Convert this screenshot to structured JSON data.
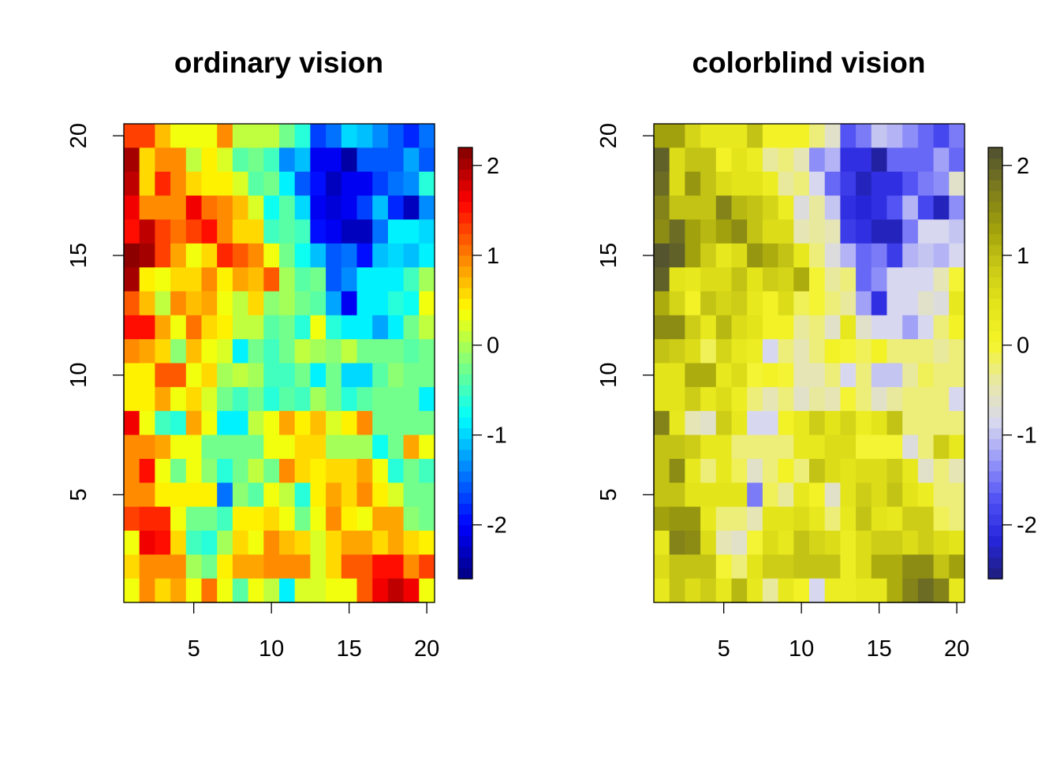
{
  "chart_data": [
    {
      "type": "heatmap",
      "title": "ordinary vision",
      "xlabel": "",
      "ylabel": "",
      "xlim": [
        0.5,
        20.5
      ],
      "ylim": [
        0.5,
        20.5
      ],
      "x_ticks": [
        "5",
        "10",
        "15",
        "20"
      ],
      "y_ticks": [
        "5",
        "10",
        "15",
        "20"
      ],
      "colorbar": {
        "range": [
          -2.6,
          2.2
        ],
        "ticks": [
          "2",
          "1",
          "0",
          "-1",
          "-2"
        ],
        "palette": [
          "#00007F",
          "#0000FF",
          "#007FFF",
          "#00FFFF",
          "#7FFF7F",
          "#FFFF00",
          "#FF7F00",
          "#FF0000",
          "#7F0000"
        ]
      },
      "colorbar_bins": 40,
      "value_matrix_ref": "shared grid of cell values, rows from y=20 down to y=1, columns x=1..20"
    },
    {
      "type": "heatmap",
      "title": "colorblind vision",
      "xlabel": "",
      "ylabel": "",
      "xlim": [
        0.5,
        20.5
      ],
      "ylim": [
        0.5,
        20.5
      ],
      "x_ticks": [
        "5",
        "10",
        "15",
        "20"
      ],
      "y_ticks": [
        "5",
        "10",
        "15",
        "20"
      ],
      "colorbar": {
        "range": [
          -2.6,
          2.2
        ],
        "ticks": [
          "2",
          "1",
          "0",
          "-1",
          "-2"
        ],
        "palette": [
          "#1E1E7A",
          "#2626DC",
          "#5050F5",
          "#9696F8",
          "#D8D8F0",
          "#E8E8A8",
          "#F5F52A",
          "#E4E41A",
          "#C8C816",
          "#9E9E0C",
          "#7A7A1E",
          "#4E4E30"
        ]
      },
      "colorbar_bins": 40,
      "value_matrix_ref": "same values as the ordinary vision panel"
    }
  ],
  "grid_values": [
    [
      1.3,
      1.3,
      0.7,
      0.4,
      0.4,
      0.4,
      0.9,
      0.1,
      0.1,
      0.1,
      -0.3,
      -0.6,
      -1.7,
      -1.5,
      -1.0,
      -1.1,
      -1.3,
      -1.6,
      -1.8,
      -1.5
    ],
    [
      2.0,
      0.6,
      0.9,
      0.9,
      0.1,
      0.5,
      0.2,
      -0.4,
      -0.2,
      -0.5,
      -1.3,
      -1.1,
      -2.1,
      -2.1,
      -2.4,
      -1.6,
      -1.6,
      -1.6,
      -1.2,
      -1.6
    ],
    [
      1.9,
      0.6,
      1.4,
      0.9,
      0.6,
      0.5,
      0.5,
      0.2,
      -0.4,
      -0.3,
      -0.8,
      -1.6,
      -1.9,
      -2.3,
      -2.1,
      -2.1,
      -1.7,
      -1.5,
      -1.3,
      -0.6
    ],
    [
      1.7,
      0.9,
      1.0,
      1.0,
      1.7,
      1.1,
      0.9,
      0.7,
      0.2,
      -0.7,
      -0.4,
      -1.0,
      -2.1,
      -2.2,
      -2.1,
      -1.7,
      -1.1,
      -1.8,
      -2.3,
      -1.4
    ],
    [
      1.6,
      1.9,
      1.3,
      1.1,
      1.3,
      1.6,
      1.0,
      0.6,
      0.6,
      -0.5,
      -0.4,
      -0.5,
      -2.0,
      -2.1,
      -2.3,
      -2.3,
      -1.5,
      -0.8,
      -0.9,
      -1.0
    ],
    [
      2.1,
      2.0,
      1.3,
      0.8,
      0.4,
      0.6,
      1.4,
      1.2,
      1.0,
      0.3,
      -0.2,
      -0.7,
      -1.1,
      -1.6,
      -1.5,
      -2.0,
      -1.1,
      -1.0,
      -1.1,
      -0.9
    ],
    [
      2.0,
      0.5,
      0.3,
      0.6,
      0.6,
      0.9,
      0.5,
      0.8,
      0.7,
      1.2,
      0.0,
      -0.4,
      -0.3,
      -1.6,
      -1.3,
      -0.8,
      -0.8,
      -0.8,
      -0.5,
      0.0
    ],
    [
      1.2,
      0.7,
      0.1,
      1.0,
      0.7,
      0.8,
      0.4,
      0.1,
      0.6,
      -0.1,
      0.0,
      -0.3,
      -0.4,
      -1.2,
      -2.1,
      -0.8,
      -0.9,
      -0.6,
      -0.7,
      0.4
    ],
    [
      1.6,
      1.6,
      0.8,
      0.4,
      1.1,
      0.6,
      0.5,
      0.1,
      0.1,
      -0.4,
      -0.3,
      -0.6,
      0.3,
      -0.6,
      -0.9,
      -0.8,
      -1.2,
      -0.8,
      -0.3,
      0.1
    ],
    [
      1.0,
      0.8,
      0.6,
      -0.1,
      0.7,
      0.3,
      0.2,
      -0.9,
      -0.3,
      -0.5,
      -0.2,
      0.1,
      0.0,
      -0.1,
      0.1,
      -0.2,
      -0.2,
      -0.2,
      -0.4,
      -0.2
    ],
    [
      0.5,
      0.5,
      1.2,
      1.2,
      0.3,
      0.6,
      0.0,
      0.1,
      0.0,
      -0.5,
      -0.5,
      -0.3,
      -0.8,
      -0.3,
      -1.0,
      -1.0,
      -0.4,
      -0.1,
      -0.2,
      -0.3
    ],
    [
      0.5,
      0.5,
      0.8,
      0.3,
      0.6,
      0.2,
      -0.3,
      -0.5,
      -0.2,
      -0.6,
      -0.4,
      -0.5,
      0.0,
      -0.3,
      -0.6,
      -0.4,
      -0.2,
      -0.2,
      -0.2,
      -0.8
    ],
    [
      1.7,
      0.3,
      -0.5,
      -0.6,
      0.8,
      0.3,
      -0.8,
      -0.8,
      0.1,
      0.4,
      0.8,
      0.5,
      0.7,
      0.2,
      0.5,
      0.9,
      -0.2,
      -0.2,
      -0.2,
      -0.3
    ],
    [
      1.0,
      0.9,
      0.8,
      0.3,
      0.4,
      -0.2,
      -0.2,
      -0.3,
      -0.3,
      0.4,
      0.4,
      0.6,
      0.6,
      0.0,
      0.0,
      0.0,
      -0.7,
      -0.2,
      0.8,
      0.3
    ],
    [
      1.0,
      1.5,
      0.3,
      -0.3,
      0.4,
      -0.1,
      -0.6,
      -0.3,
      0.1,
      -0.3,
      1.0,
      0.6,
      0.5,
      0.6,
      0.6,
      0.8,
      0.4,
      -0.6,
      -0.2,
      -0.5
    ],
    [
      1.0,
      0.9,
      0.5,
      0.5,
      0.5,
      0.5,
      -1.5,
      -0.1,
      -0.4,
      0.3,
      0.1,
      -0.6,
      0.5,
      0.8,
      0.6,
      1.0,
      0.5,
      0.2,
      -0.2,
      -0.2
    ],
    [
      1.3,
      1.4,
      1.4,
      0.3,
      -0.2,
      -0.2,
      -0.5,
      0.5,
      0.5,
      0.6,
      0.3,
      -0.2,
      0.3,
      1.0,
      0.5,
      0.3,
      0.8,
      0.8,
      -0.1,
      -0.2
    ],
    [
      0.3,
      1.7,
      1.5,
      0.6,
      -0.5,
      -0.6,
      0.0,
      0.6,
      0.4,
      1.0,
      0.7,
      0.6,
      0.2,
      0.6,
      0.8,
      0.8,
      0.6,
      0.8,
      0.6,
      0.5
    ],
    [
      0.6,
      1.0,
      1.0,
      1.0,
      0.0,
      -0.2,
      0.5,
      0.8,
      0.8,
      0.9,
      1.0,
      1.0,
      0.2,
      0.6,
      1.2,
      1.2,
      1.6,
      1.5,
      0.9,
      1.3
    ],
    [
      0.4,
      0.9,
      0.6,
      0.8,
      0.3,
      1.1,
      0.4,
      -0.4,
      0.3,
      0.1,
      -0.9,
      0.2,
      0.2,
      0.4,
      0.4,
      1.2,
      1.7,
      1.9,
      1.7,
      0.4
    ]
  ]
}
